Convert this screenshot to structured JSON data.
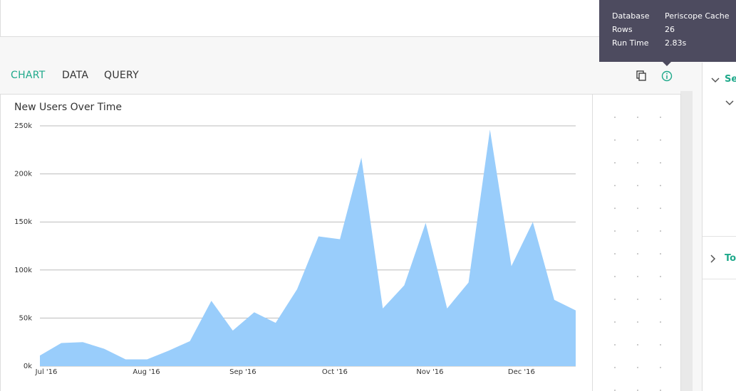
{
  "tabs": [
    "CHART",
    "DATA",
    "QUERY"
  ],
  "tooltip": {
    "rows": [
      [
        "Database",
        "Periscope Cache"
      ],
      [
        "Rows",
        "26"
      ],
      [
        "Run Time",
        "2.83s"
      ]
    ]
  },
  "sidebar": [
    "Se",
    "To"
  ],
  "chart_data": {
    "type": "area",
    "title": "New Users Over Time",
    "color": "#99cdfb",
    "x": [
      0,
      1,
      2,
      3,
      4,
      5,
      6,
      7,
      8,
      9,
      10,
      11,
      12,
      13,
      14,
      15,
      16,
      17,
      18,
      19,
      20,
      21,
      22,
      23,
      24,
      25
    ],
    "values": [
      11000,
      24000,
      25000,
      18000,
      7000,
      7000,
      16000,
      26000,
      68000,
      37000,
      56000,
      45000,
      80000,
      135000,
      132000,
      217000,
      60000,
      84000,
      149000,
      60000,
      87000,
      246000,
      104000,
      150000,
      69000,
      58000
    ],
    "xlim": [
      0,
      25
    ],
    "xticks": [
      {
        "value": 0.3,
        "label": "Jul '16"
      },
      {
        "value": 4.97,
        "label": "Aug '16"
      },
      {
        "value": 9.47,
        "label": "Sep '16"
      },
      {
        "value": 13.76,
        "label": "Oct '16"
      },
      {
        "value": 18.2,
        "label": "Nov '16"
      },
      {
        "value": 22.47,
        "label": "Dec '16"
      }
    ],
    "ylim": [
      0,
      250000
    ],
    "yticks": [
      {
        "value": 0,
        "label": "0k"
      },
      {
        "value": 50000,
        "label": "50k"
      },
      {
        "value": 100000,
        "label": "100k"
      },
      {
        "value": 150000,
        "label": "150k"
      },
      {
        "value": 200000,
        "label": "200k"
      },
      {
        "value": 250000,
        "label": "250k"
      }
    ],
    "grid": true
  }
}
